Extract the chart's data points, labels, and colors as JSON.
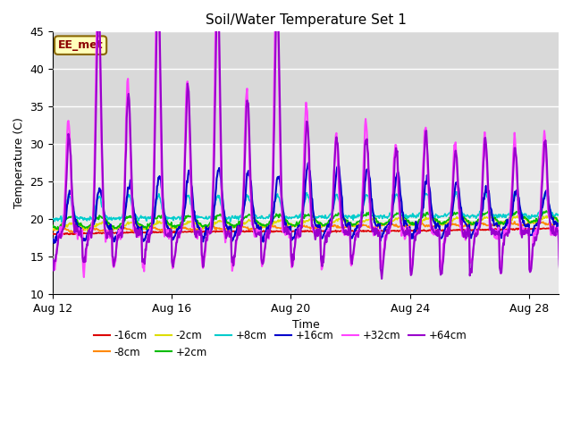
{
  "title": "Soil/Water Temperature Set 1",
  "xlabel": "Time",
  "ylabel": "Temperature (C)",
  "ylim": [
    10,
    45
  ],
  "yticks": [
    10,
    15,
    20,
    25,
    30,
    35,
    40,
    45
  ],
  "x_tick_labels": [
    "Aug 12",
    "Aug 16",
    "Aug 20",
    "Aug 24",
    "Aug 28"
  ],
  "x_tick_positions": [
    0,
    4,
    8,
    12,
    16
  ],
  "xlim": [
    0,
    17
  ],
  "fig_bg_color": "#ffffff",
  "plot_bg_color": "#e8e8e8",
  "series_colors": {
    "-16cm": "#dd0000",
    "-8cm": "#ff8800",
    "-2cm": "#dddd00",
    "+2cm": "#00bb00",
    "+8cm": "#00cccc",
    "+16cm": "#0000cc",
    "+32cm": "#ff44ff",
    "+64cm": "#9900cc"
  },
  "legend_label": "EE_met",
  "shaded_band_light": [
    30,
    45
  ],
  "shaded_band_white": [
    10,
    30
  ]
}
